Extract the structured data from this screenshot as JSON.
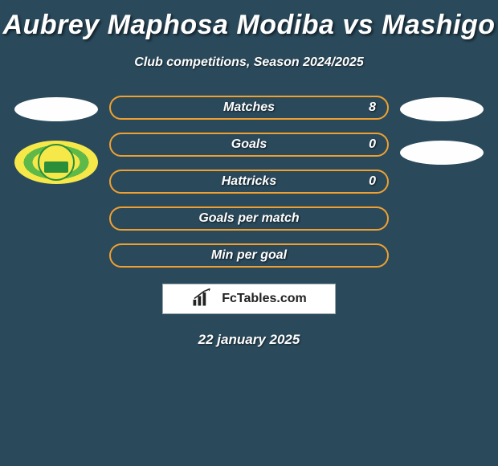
{
  "title": "Aubrey Maphosa Modiba vs Mashigo",
  "subtitle": "Club competitions, Season 2024/2025",
  "date": "22 january 2025",
  "footer_brand": "FcTables.com",
  "colors": {
    "background": "#2a4a5c",
    "bar_border": "#f0a030",
    "text": "#ffffff",
    "logo_bg": "#ffffff",
    "logo_text": "#222222"
  },
  "left_badges": [
    {
      "type": "blank"
    },
    {
      "type": "sundowns"
    }
  ],
  "right_badges": [
    {
      "type": "blank"
    },
    {
      "type": "blank"
    }
  ],
  "bars": [
    {
      "label": "Matches",
      "value": "8"
    },
    {
      "label": "Goals",
      "value": "0"
    },
    {
      "label": "Hattricks",
      "value": "0"
    },
    {
      "label": "Goals per match",
      "value": ""
    },
    {
      "label": "Min per goal",
      "value": ""
    }
  ]
}
